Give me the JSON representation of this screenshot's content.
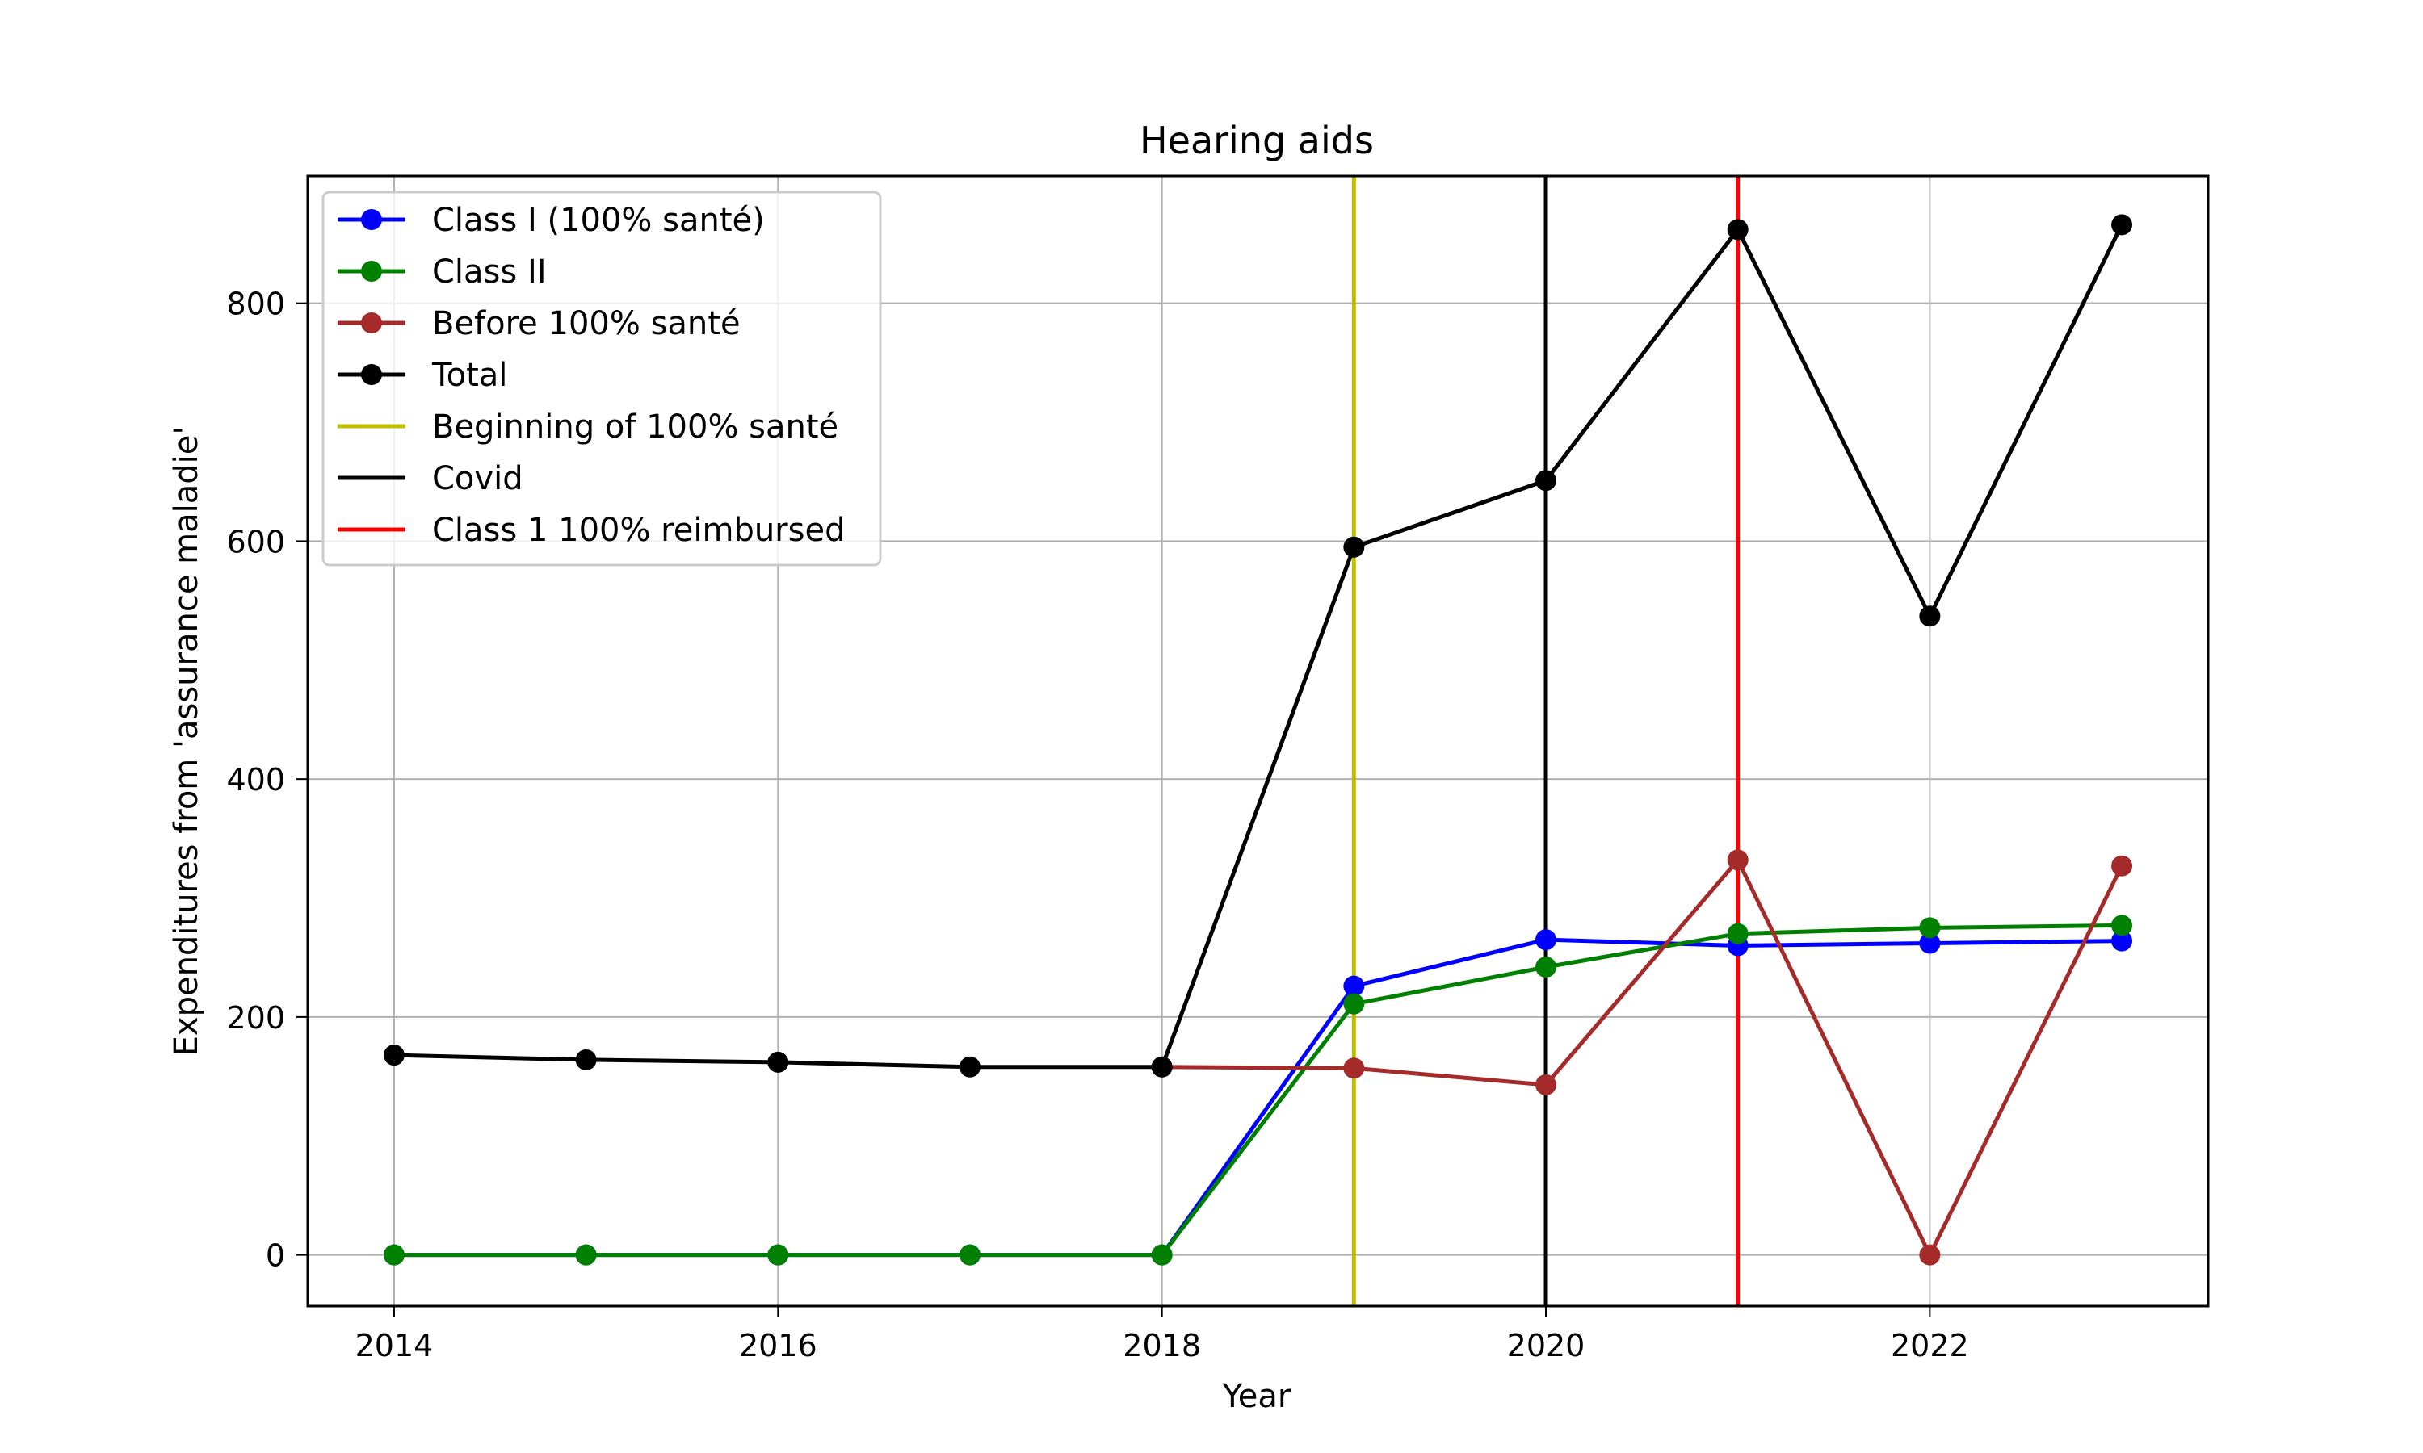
{
  "chart_data": {
    "type": "line",
    "title": "Hearing aids",
    "xlabel": "Year",
    "ylabel": "Expenditures from 'assurance maladie'",
    "xlim": [
      2013.55,
      2023.45
    ],
    "ylim": [
      -43,
      907
    ],
    "x_ticks": [
      2014,
      2016,
      2018,
      2020,
      2022
    ],
    "y_ticks": [
      0,
      200,
      400,
      600,
      800
    ],
    "grid": true,
    "legend_position": "top-left",
    "x": [
      2014,
      2015,
      2016,
      2017,
      2018,
      2019,
      2020,
      2021,
      2022,
      2023
    ],
    "series": [
      {
        "name": "Class I (100% santé)",
        "color": "#0000ff",
        "marker": "circle",
        "x": [
          2014,
          2015,
          2016,
          2017,
          2018,
          2019,
          2020,
          2021,
          2022,
          2023
        ],
        "values": [
          0,
          0,
          0,
          0,
          0,
          226,
          265,
          260,
          262,
          264
        ]
      },
      {
        "name": "Class II",
        "color": "#008000",
        "marker": "circle",
        "x": [
          2014,
          2015,
          2016,
          2017,
          2018,
          2019,
          2020,
          2021,
          2022,
          2023
        ],
        "values": [
          0,
          0,
          0,
          0,
          0,
          211,
          242,
          270,
          275,
          277
        ]
      },
      {
        "name": "Before 100% santé",
        "color": "#a52a2a",
        "marker": "circle",
        "x": [
          2018,
          2019,
          2020,
          2021,
          2022,
          2023
        ],
        "values": [
          158,
          157,
          143,
          332,
          0,
          327
        ]
      },
      {
        "name": "Total",
        "color": "#000000",
        "marker": "circle",
        "x": [
          2014,
          2015,
          2016,
          2017,
          2018,
          2019,
          2020,
          2021,
          2022,
          2023
        ],
        "values": [
          168,
          164,
          162,
          158,
          158,
          595,
          651,
          862,
          537,
          866
        ]
      }
    ],
    "vertical_lines": [
      {
        "name": "Beginning of 100% santé",
        "x": 2019,
        "color": "#bfbf00"
      },
      {
        "name": "Covid",
        "x": 2020,
        "color": "#000000"
      },
      {
        "name": "Class 1 100% reimbursed",
        "x": 2021,
        "color": "#ff0000"
      }
    ]
  }
}
